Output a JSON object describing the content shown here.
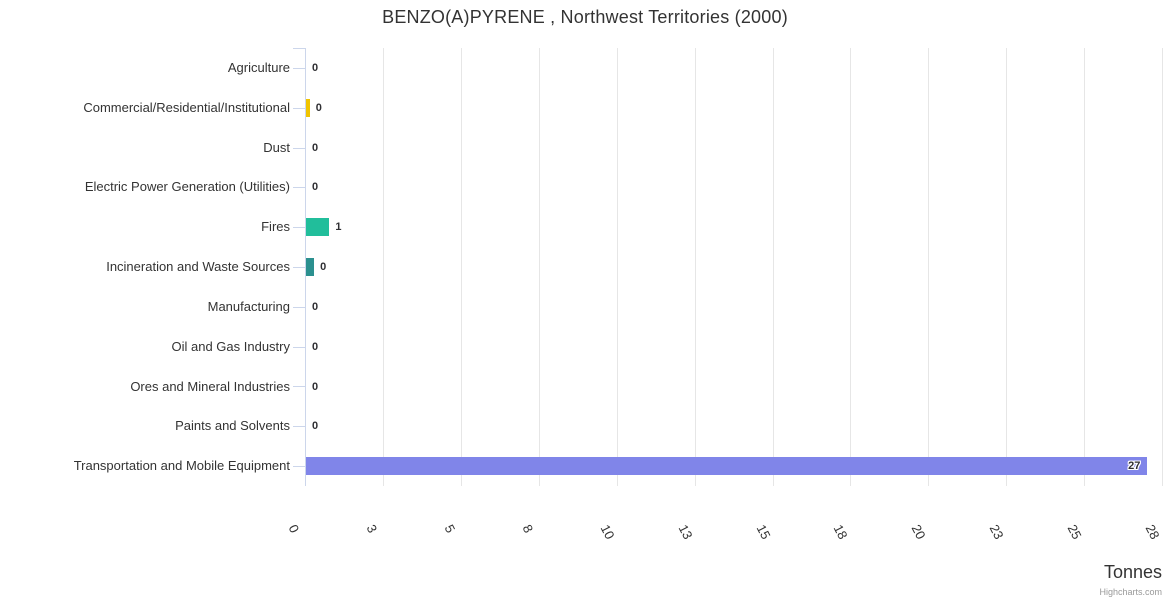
{
  "chart_data": {
    "type": "bar",
    "orientation": "horizontal",
    "title": "BENZO(A)PYRENE , Northwest Territories (2000)",
    "xlabel": "Tonnes",
    "ylabel": "",
    "legend": "none",
    "grid": true,
    "credit": "Highcharts.com",
    "categories": [
      "Agriculture",
      "Commercial/Residential/Institutional",
      "Dust",
      "Electric Power Generation (Utilities)",
      "Fires",
      "Incineration and Waste Sources",
      "Manufacturing",
      "Oil and Gas Industry",
      "Ores and Mineral Industries",
      "Paints and Solvents",
      "Transportation and Mobile Equipment"
    ],
    "values": [
      0,
      0.12,
      0,
      0,
      0.75,
      0.26,
      0,
      0,
      0,
      0,
      27
    ],
    "value_labels": [
      "0",
      "0",
      "0",
      "0",
      "1",
      "0",
      "0",
      "0",
      "0",
      "0",
      "27"
    ],
    "bar_colors": [
      null,
      "#f0c400",
      null,
      null,
      "#21be9b",
      "#2b908f",
      null,
      null,
      null,
      null,
      "#8085e9"
    ],
    "label_inside": [
      false,
      false,
      false,
      false,
      false,
      false,
      false,
      false,
      false,
      false,
      true
    ],
    "xlim": [
      0,
      27.5
    ],
    "x_ticks": [
      "0",
      "3",
      "5",
      "8",
      "10",
      "13",
      "15",
      "18",
      "20",
      "23",
      "25",
      "28"
    ],
    "colors": {
      "axis_line": "#ccd6eb",
      "gridline": "#e6e6e6",
      "title_text": "#333333",
      "label_text": "#333333",
      "data_label_text": "#2f2f33",
      "credit_text": "#999999",
      "background": "#ffffff"
    }
  }
}
